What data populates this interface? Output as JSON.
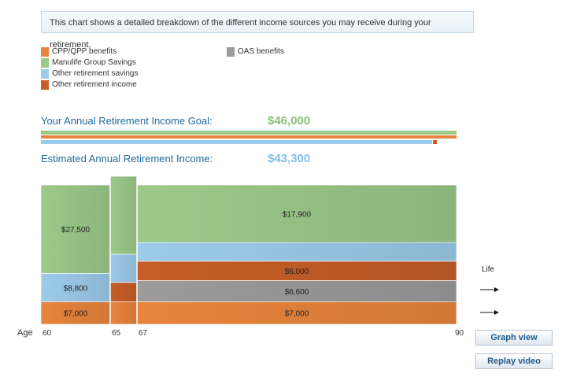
{
  "intro_text": "This chart shows a detailed breakdown of the different income sources you may receive during  your retirement.",
  "legend": [
    {
      "label": "CPP/QPP benefits",
      "color": "#e8843c"
    },
    {
      "label": "Manulife Group Savings",
      "color": "#9cc98a"
    },
    {
      "label": "Other retirement savings",
      "color": "#9ccbea"
    },
    {
      "label": "Other retirement income",
      "color": "#c75e28"
    },
    {
      "label": "OAS benefits",
      "color": "#9b9b9b"
    }
  ],
  "goal": {
    "label": "Your Annual Retirement Income Goal:",
    "value": "$46,000",
    "value_color": "#8ac07a"
  },
  "estimate": {
    "label": "Estimated Annual Retirement Income:",
    "value": "$43,300",
    "value_color": "#7fbfe6"
  },
  "chart_data": {
    "type": "area",
    "x_axis_label": "Age",
    "x_ticks": [
      "60",
      "65",
      "67",
      "90"
    ],
    "total_scale": 46000,
    "segments": [
      {
        "from_age": 60,
        "to_age": 65,
        "stack": [
          {
            "source": "CPP/QPP benefits",
            "value": 7000,
            "label": "$7,000"
          },
          {
            "source": "Other retirement savings",
            "value": 8800,
            "label": "$8,800"
          },
          {
            "source": "Manulife Group Savings",
            "value": 27500,
            "label": "$27,500"
          }
        ]
      },
      {
        "from_age": 65,
        "to_age": 67,
        "stack": [
          {
            "source": "CPP/QPP benefits",
            "value": 7000,
            "label": ""
          },
          {
            "source": "Other retirement income",
            "value": 6000,
            "label": ""
          },
          {
            "source": "Other retirement savings",
            "value": 8800,
            "label": ""
          },
          {
            "source": "Manulife Group Savings",
            "value": 24200,
            "label": ""
          }
        ]
      },
      {
        "from_age": 67,
        "to_age": 90,
        "stack": [
          {
            "source": "CPP/QPP benefits",
            "value": 7000,
            "label": "$7,000"
          },
          {
            "source": "OAS benefits",
            "value": 6600,
            "label": "$6,600"
          },
          {
            "source": "Other retirement income",
            "value": 6000,
            "label": "$6,000"
          },
          {
            "source": "Other retirement savings",
            "value": 5800,
            "label": ""
          },
          {
            "source": "Manulife Group Savings",
            "value": 17900,
            "label": "$17,900"
          }
        ]
      }
    ]
  },
  "life_label": "Life",
  "buttons": {
    "graph_view": "Graph view",
    "replay_video": "Replay video"
  }
}
